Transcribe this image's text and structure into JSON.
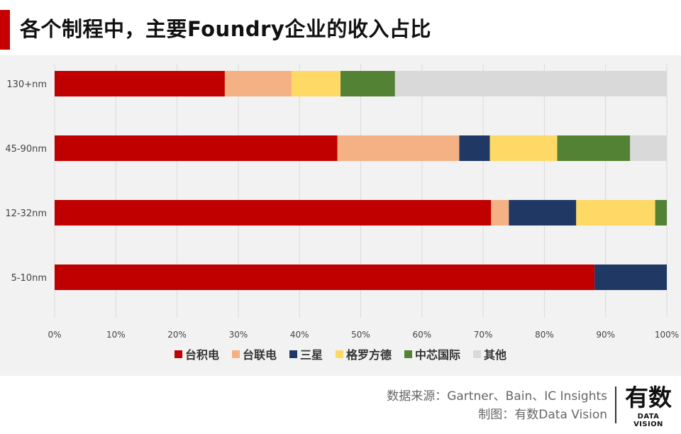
{
  "title": "各个制程中，主要Foundry企业的收入占比",
  "chart_data": {
    "type": "bar",
    "orientation": "horizontal",
    "stacked": true,
    "categories": [
      "130+nm",
      "45-90nm",
      "12-32nm",
      "5-10nm"
    ],
    "series": [
      {
        "name": "台积电",
        "color": "#c00000",
        "values": [
          27.8,
          46.2,
          71.3,
          88.2
        ]
      },
      {
        "name": "台联电",
        "color": "#f4b183",
        "values": [
          10.9,
          19.9,
          2.9,
          0
        ]
      },
      {
        "name": "三星",
        "color": "#1f3864",
        "values": [
          0,
          5.0,
          11.0,
          11.8
        ]
      },
      {
        "name": "格罗方德",
        "color": "#ffd966",
        "values": [
          8.0,
          11.0,
          12.9,
          0
        ]
      },
      {
        "name": "中芯国际",
        "color": "#548235",
        "values": [
          8.9,
          11.9,
          1.9,
          0
        ]
      },
      {
        "name": "其他",
        "color": "#d9d9d9",
        "values": [
          44.4,
          6.0,
          0,
          0
        ]
      }
    ],
    "xlim": [
      0,
      100
    ],
    "xticks": [
      "0%",
      "10%",
      "20%",
      "30%",
      "40%",
      "50%",
      "60%",
      "70%",
      "80%",
      "90%",
      "100%"
    ],
    "grid": true,
    "legend_position": "bottom"
  },
  "footer": {
    "source": "数据来源：Gartner、Bain、IC Insights",
    "credit": "制图：有数Data Vision"
  },
  "logo": {
    "cn": "有数",
    "en": "DATA VISION"
  }
}
